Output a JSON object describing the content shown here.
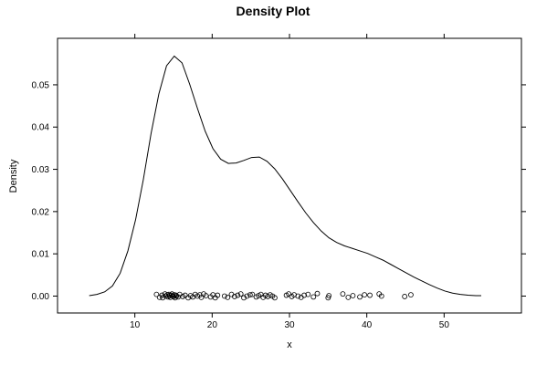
{
  "chart_data": {
    "type": "line",
    "title": "Density Plot",
    "xlabel": "x",
    "ylabel": "Density",
    "xlim": [
      0,
      60
    ],
    "ylim": [
      -0.004,
      0.061
    ],
    "x_ticks": [
      10,
      20,
      30,
      40,
      50
    ],
    "y_ticks": [
      0.0,
      0.01,
      0.02,
      0.03,
      0.04,
      0.05
    ],
    "x_tick_labels": [
      "10",
      "20",
      "30",
      "40",
      "50"
    ],
    "y_tick_labels": [
      "0.00",
      "0.01",
      "0.02",
      "0.03",
      "0.04",
      "0.05"
    ],
    "grid": false,
    "legend": "none",
    "series": [
      {
        "kind": "density",
        "x": [
          4.1,
          5.1,
          6.1,
          7.1,
          8.1,
          9.1,
          10.1,
          11.1,
          12.1,
          13.1,
          14.1,
          15.1,
          16.1,
          17.1,
          18.1,
          19.1,
          20.1,
          21.1,
          22.1,
          23.1,
          24.1,
          25.1,
          26.1,
          27.1,
          28.1,
          29.1,
          30.1,
          31.1,
          32.1,
          33.1,
          34.1,
          35.1,
          36.1,
          37.1,
          38.1,
          39.1,
          40.1,
          41.1,
          42.1,
          43.1,
          44.1,
          45.1,
          46.1,
          47.1,
          48.1,
          49.1,
          50.1,
          51.1,
          52.1,
          53.1,
          54.1,
          54.8
        ],
        "y": [
          0.0001,
          0.0004,
          0.001,
          0.0024,
          0.0054,
          0.0107,
          0.0181,
          0.0276,
          0.0385,
          0.0478,
          0.0545,
          0.0568,
          0.0552,
          0.0501,
          0.0444,
          0.039,
          0.0349,
          0.0324,
          0.0314,
          0.0315,
          0.0321,
          0.0328,
          0.0329,
          0.0319,
          0.0301,
          0.0277,
          0.025,
          0.0223,
          0.0197,
          0.0174,
          0.0154,
          0.0138,
          0.0127,
          0.0119,
          0.0113,
          0.0107,
          0.0101,
          0.0093,
          0.0085,
          0.0075,
          0.0065,
          0.0055,
          0.0045,
          0.0036,
          0.0027,
          0.0019,
          0.0012,
          0.0007,
          0.0004,
          0.0002,
          0.0001,
          0.0001
        ]
      },
      {
        "kind": "rug",
        "x": [
          12.8,
          13.2,
          13.5,
          13.6,
          13.9,
          14.0,
          14.2,
          14.3,
          14.4,
          14.5,
          14.6,
          14.7,
          14.8,
          14.9,
          15.0,
          15.1,
          15.2,
          15.3,
          15.4,
          15.6,
          15.8,
          16.2,
          16.5,
          16.9,
          17.2,
          17.5,
          17.8,
          18.1,
          18.4,
          18.6,
          18.9,
          19.2,
          19.8,
          20.1,
          20.4,
          20.7,
          21.6,
          22.0,
          22.5,
          22.9,
          23.3,
          23.7,
          24.1,
          24.5,
          24.9,
          25.2,
          25.7,
          26.0,
          26.3,
          26.6,
          26.9,
          27.2,
          27.5,
          27.8,
          28.1,
          29.6,
          29.9,
          30.3,
          30.6,
          31.1,
          31.5,
          31.9,
          32.4,
          33.1,
          33.6,
          35.0,
          35.1,
          36.9,
          37.6,
          38.2,
          39.1,
          39.7,
          40.4,
          41.6,
          41.9,
          44.9,
          45.7
        ],
        "y": [
          0.0004,
          -0.0003,
          0.0002,
          -0.0004,
          0.0005,
          0.0,
          0.0003,
          -0.0002,
          0.0004,
          0.0001,
          -0.0003,
          0.0002,
          0.0005,
          0.0,
          -0.0001,
          0.0003,
          -0.0004,
          0.0002,
          0.0,
          -0.0002,
          0.0004,
          -0.0001,
          0.0002,
          -0.0004,
          0.0001,
          -0.0002,
          0.0004,
          0.0,
          0.0003,
          -0.0003,
          0.0005,
          0.0001,
          -0.0002,
          0.0003,
          -0.0004,
          0.0002,
          0.0,
          -0.0003,
          0.0004,
          -0.0001,
          0.0002,
          0.0005,
          -0.0004,
          0.0,
          0.0003,
          0.0004,
          -0.0002,
          0.0001,
          0.0004,
          -0.0003,
          0.0002,
          -0.0001,
          0.0003,
          0.0,
          -0.0004,
          0.0002,
          0.0005,
          -0.0001,
          0.0003,
          0.0,
          -0.0003,
          0.0002,
          0.0004,
          -0.0002,
          0.0006,
          -0.0004,
          0.0001,
          0.0005,
          -0.0003,
          0.0001,
          -0.0002,
          0.0003,
          0.0002,
          0.0005,
          0.0,
          -0.0001,
          0.0003
        ]
      }
    ]
  }
}
